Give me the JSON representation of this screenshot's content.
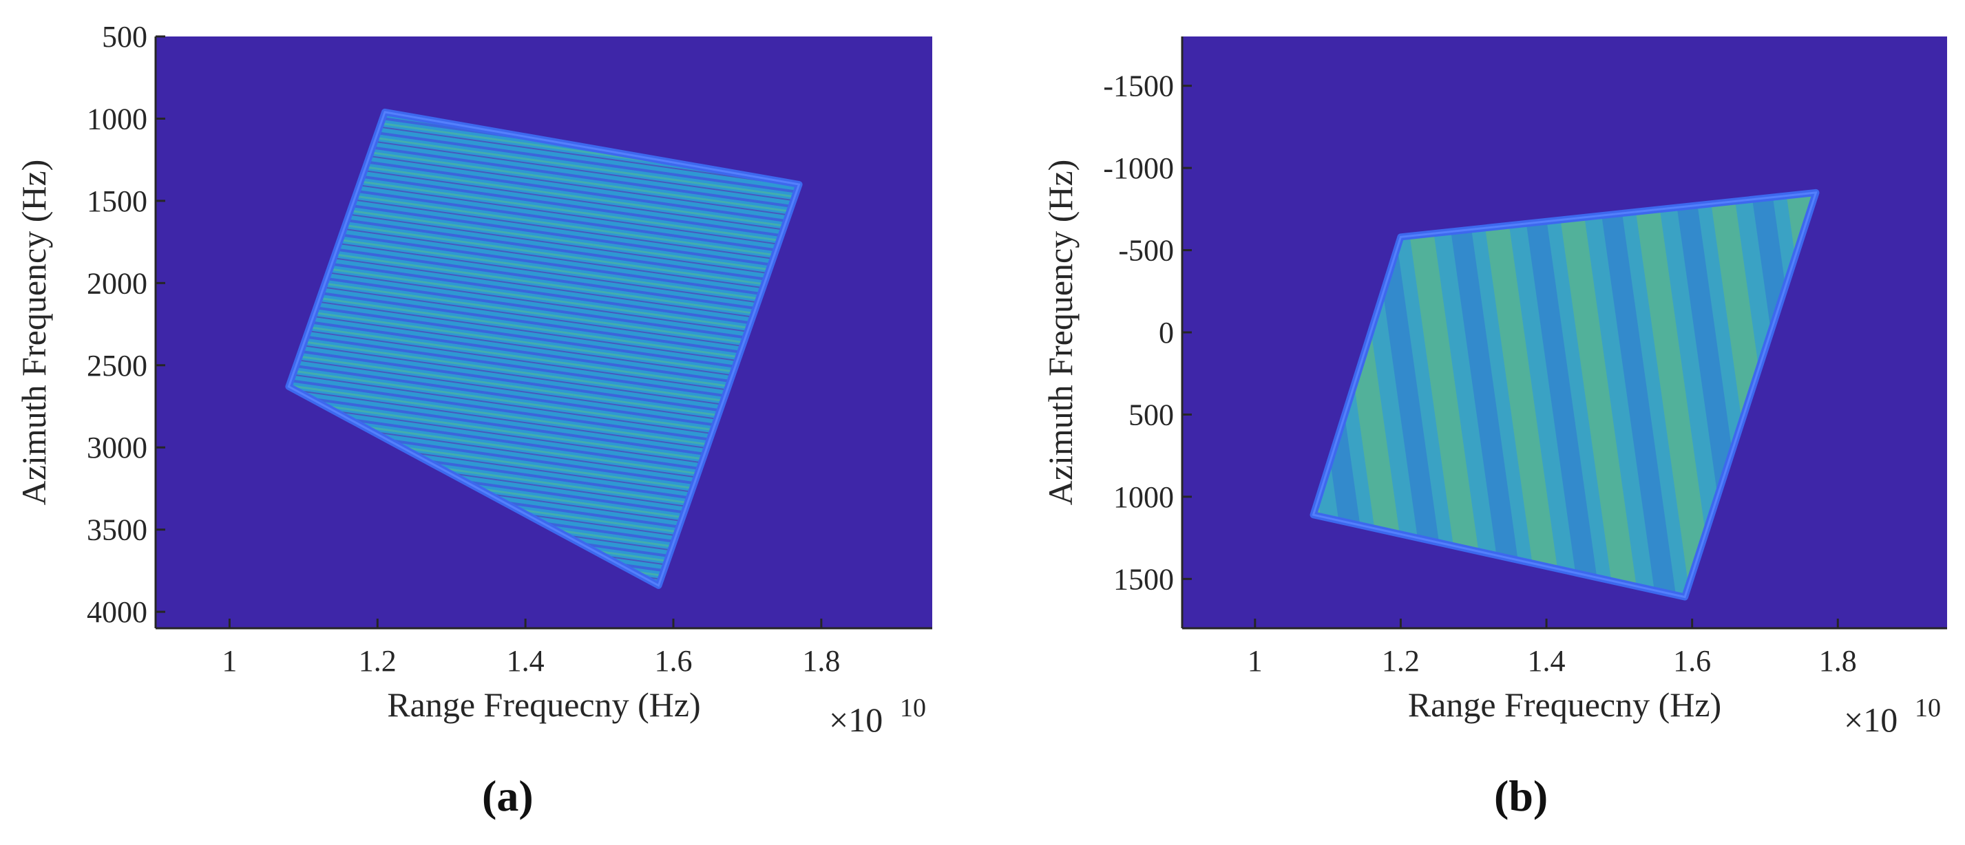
{
  "chart_data": [
    {
      "type": "heatmap",
      "panel_label": "(a)",
      "xlabel": "Range Frequecny (Hz)",
      "ylabel": "Azimuth Frequency (Hz)",
      "x_exponent": "×10",
      "x_exponent_power": "10",
      "xlim": [
        0.9,
        1.95
      ],
      "ylim": [
        4100,
        500
      ],
      "xticks": [
        1,
        1.2,
        1.4,
        1.6,
        1.8
      ],
      "xtick_labels": [
        "1",
        "1.2",
        "1.4",
        "1.6",
        "1.8"
      ],
      "yticks": [
        500,
        1000,
        1500,
        2000,
        2500,
        3000,
        3500,
        4000
      ],
      "ytick_labels": [
        "500",
        "1000",
        "1500",
        "2000",
        "2500",
        "3000",
        "3500",
        "4000"
      ],
      "region_corners": [
        [
          1.21,
          960
        ],
        [
          1.77,
          1400
        ],
        [
          1.58,
          3840
        ],
        [
          1.08,
          2630
        ]
      ],
      "pattern": "horizontal-fringes",
      "colors": {
        "background": "#3e26a8",
        "edge": "#3d6cf2",
        "fill": "#2f9bd8"
      }
    },
    {
      "type": "heatmap",
      "panel_label": "(b)",
      "xlabel": "Range Frequecny (Hz)",
      "ylabel": "Azimuth Frequency (Hz)",
      "x_exponent": "×10",
      "x_exponent_power": "10",
      "xlim": [
        0.9,
        1.95
      ],
      "ylim": [
        1800,
        -1800
      ],
      "xticks": [
        1,
        1.2,
        1.4,
        1.6,
        1.8
      ],
      "xtick_labels": [
        "1",
        "1.2",
        "1.4",
        "1.6",
        "1.8"
      ],
      "yticks": [
        -1500,
        -1000,
        -500,
        0,
        500,
        1000,
        1500
      ],
      "ytick_labels": [
        "-1500",
        "-1000",
        "-500",
        "0",
        "500",
        "1000",
        "1500"
      ],
      "region_corners": [
        [
          1.2,
          -580
        ],
        [
          1.77,
          -850
        ],
        [
          1.59,
          1610
        ],
        [
          1.08,
          1110
        ]
      ],
      "pattern": "vertical-fringes",
      "colors": {
        "background": "#3e26a8",
        "edge": "#3d6cf2",
        "fill": "#35b7b0"
      }
    }
  ]
}
